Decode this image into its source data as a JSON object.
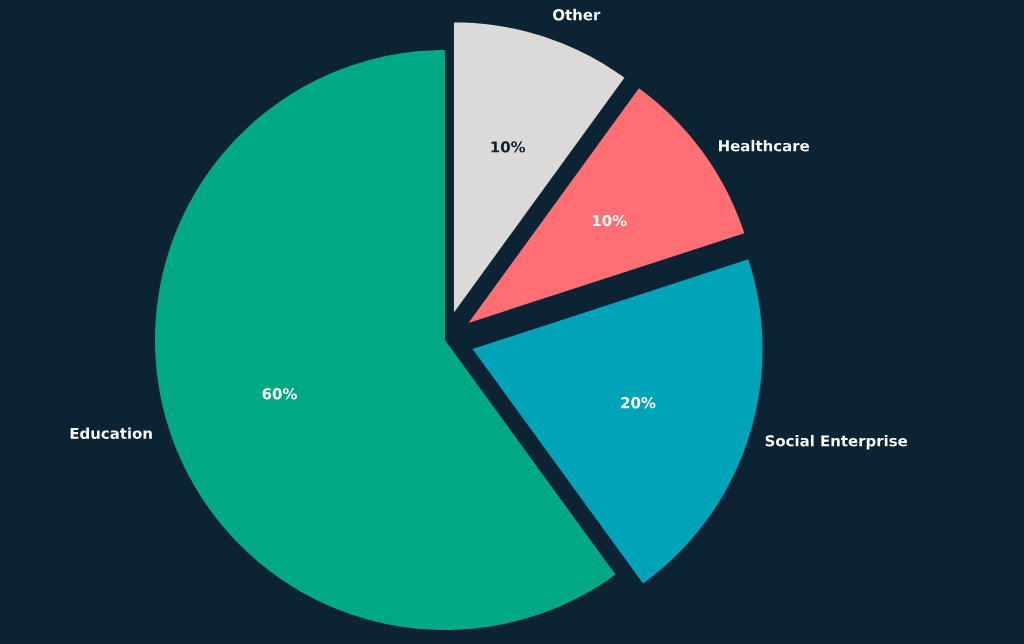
{
  "chart_data": {
    "type": "pie",
    "categories": [
      "Education",
      "Social Enterprise",
      "Healthcare",
      "Other"
    ],
    "values": [
      60,
      20,
      10,
      10
    ],
    "colors": [
      "#00a884",
      "#00a3b8",
      "#ff6f73",
      "#dcdad8"
    ],
    "value_labels": [
      "60%",
      "20%",
      "10%",
      "10%"
    ]
  }
}
